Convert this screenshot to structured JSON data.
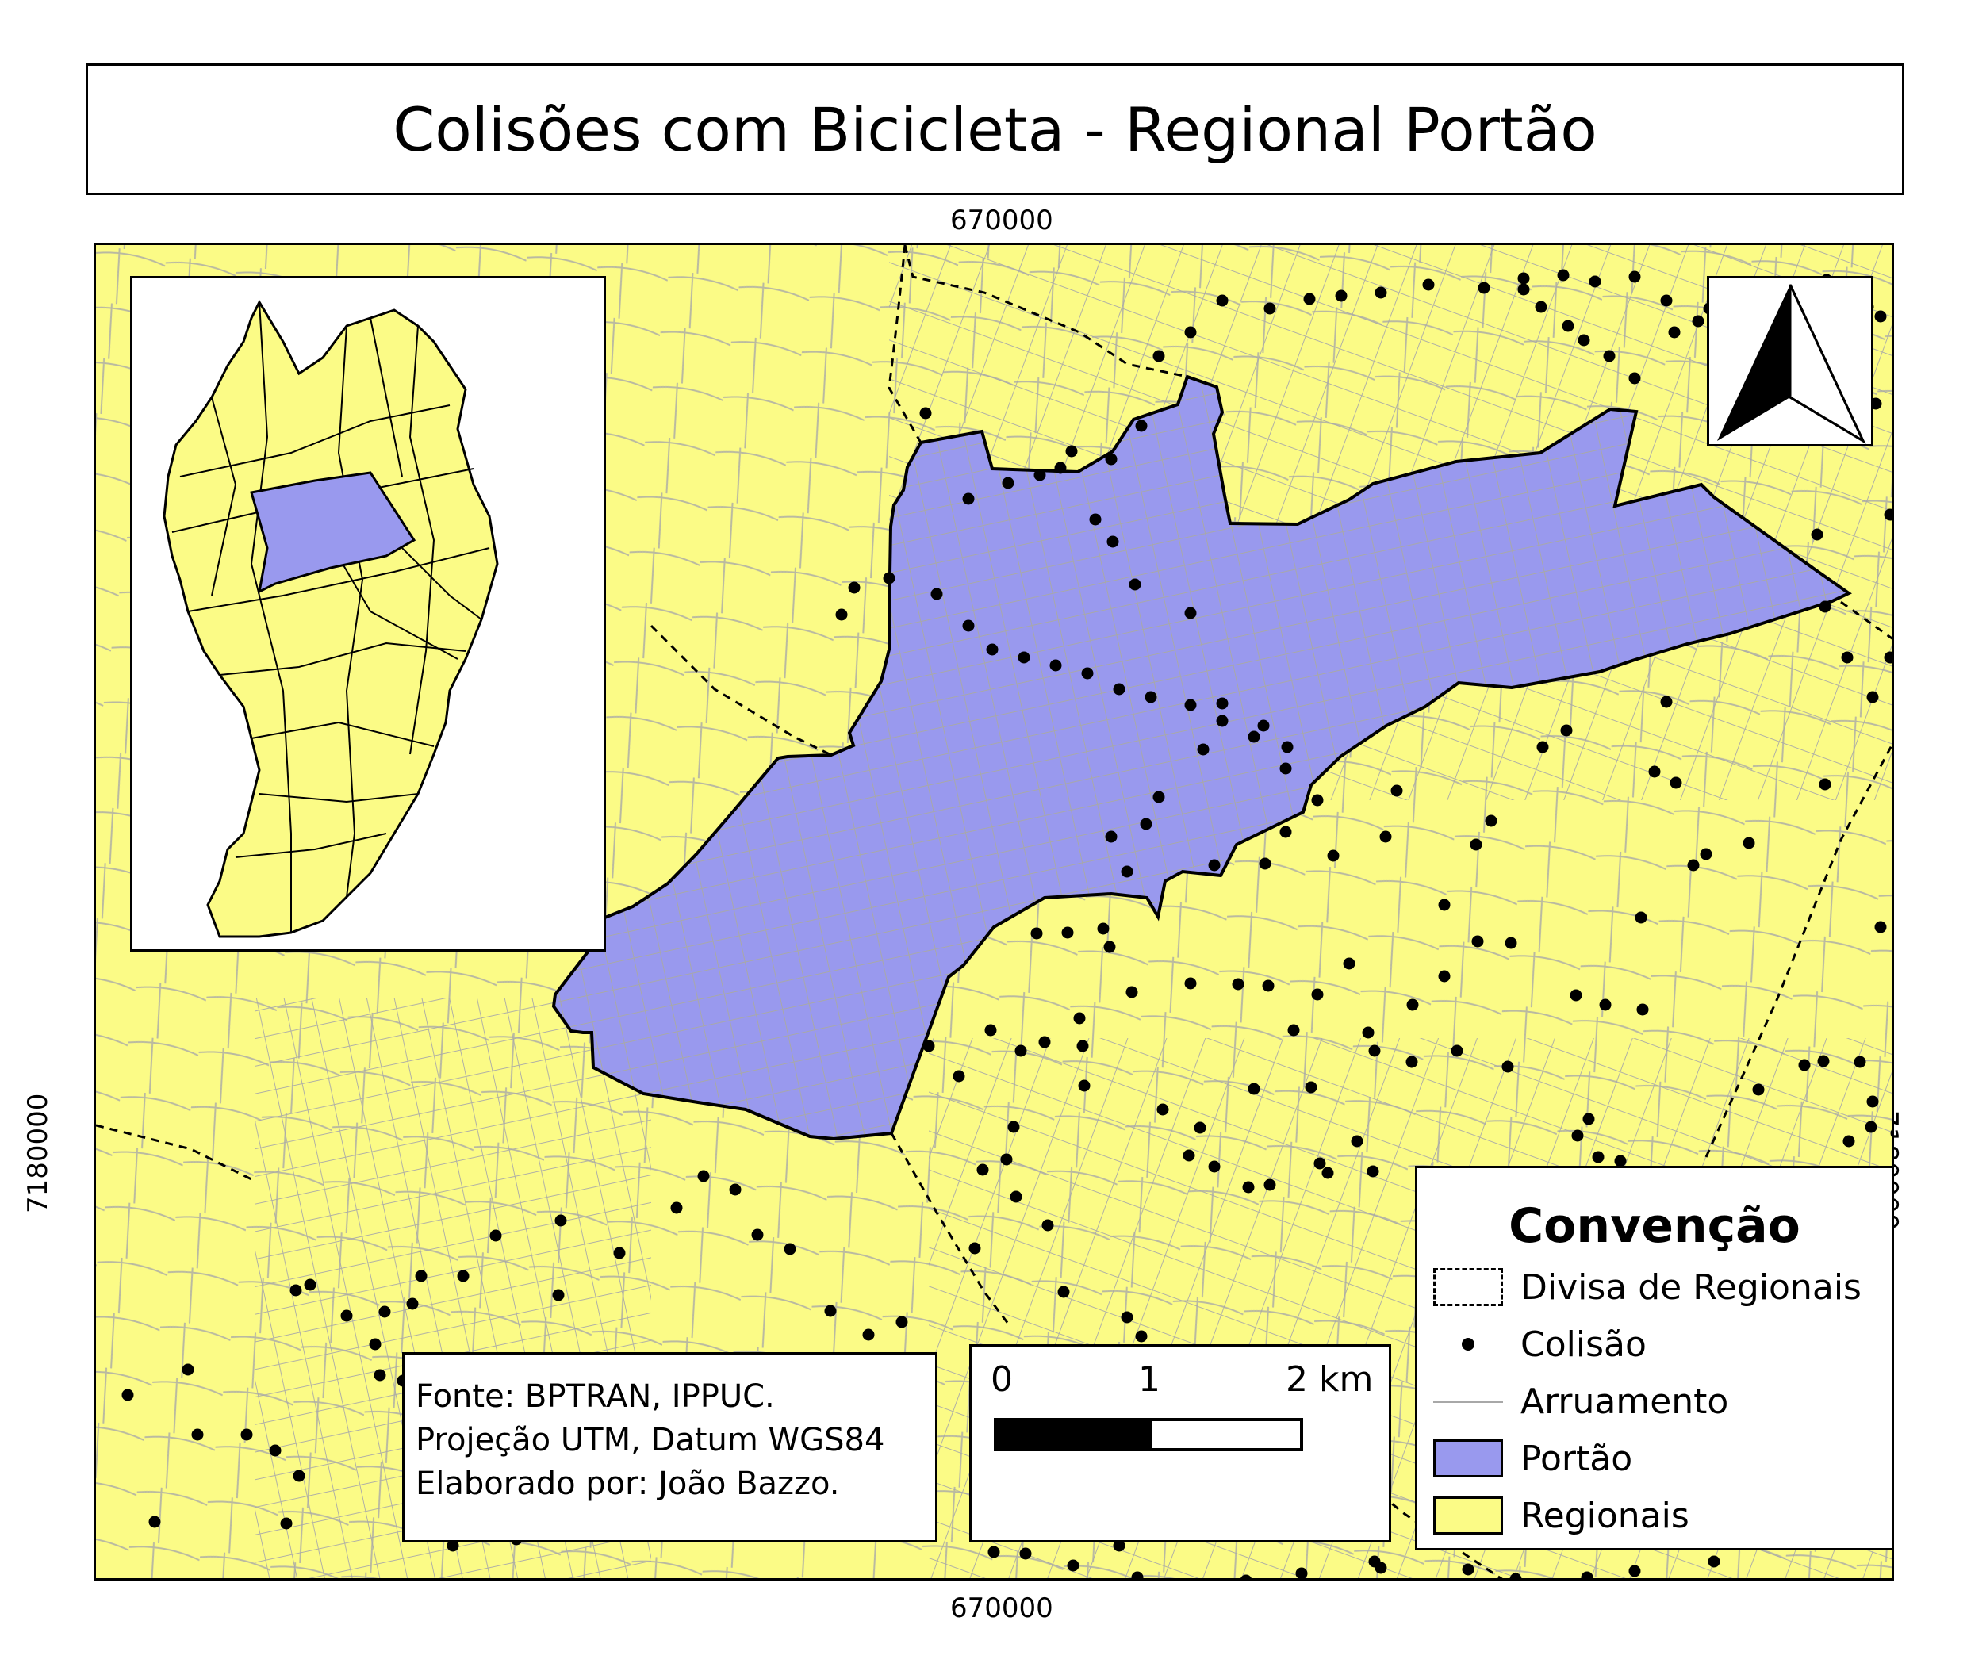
{
  "title": "Colisões com Bicicleta - Regional Portão",
  "coords": {
    "top_x": "670000",
    "bottom_x": "670000",
    "left_y": "7180000",
    "right_y": "7180000"
  },
  "source": {
    "line1": "Fonte: BPTRAN, IPPUC.",
    "line2": "Projeção UTM, Datum WGS84",
    "line3": "Elaborado por: João Bazzo."
  },
  "scale": {
    "label0": "0",
    "label1": "1",
    "label2": "2 km"
  },
  "legend": {
    "title": "Convenção",
    "items": [
      {
        "label": "Divisa de Regionais",
        "symbol": "dashed-border"
      },
      {
        "label": "Colisão",
        "symbol": "dot"
      },
      {
        "label": "Arruamento",
        "symbol": "line"
      },
      {
        "label": "Portão",
        "symbol": "fill",
        "color": "#9999ee"
      },
      {
        "label": "Regionais",
        "symbol": "fill",
        "color": "#fbfb86"
      }
    ]
  },
  "colors": {
    "regionais": "#fbfb86",
    "portao": "#9999ee",
    "street": "#a8a8a8",
    "collision": "#000000"
  }
}
